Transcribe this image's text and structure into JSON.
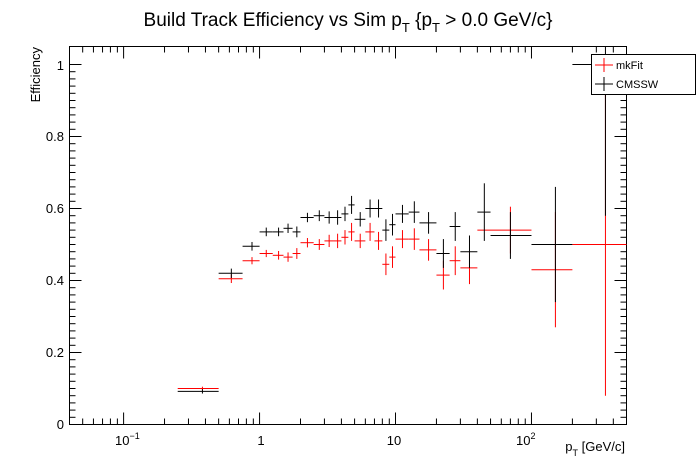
{
  "chart_data": {
    "type": "scatter",
    "title": "Build Track Efficiency vs Sim p",
    "title_sub": "T",
    "title_rest1": " {p",
    "title_sub2": "T",
    "title_rest2": " > 0.0 GeV/c}",
    "xlabel": "p",
    "xlabel_sub": "T",
    "xlabel_rest": " [GeV/c]",
    "ylabel": "Efficiency",
    "xscale": "log",
    "xlim": [
      0.04,
      500
    ],
    "ylim": [
      0,
      1.05
    ],
    "x_tick_labels": [
      "10",
      "−1",
      "1",
      "10",
      "10",
      "2"
    ],
    "y_tick_labels": [
      "0",
      "0.2",
      "0.4",
      "0.6",
      "0.8",
      "1"
    ],
    "legend_position": "top-right",
    "series": [
      {
        "name": "mkFit",
        "color": "#ff0000",
        "points": [
          {
            "x": 0.38,
            "xlo": 0.25,
            "xhi": 0.5,
            "y": 0.1,
            "yerr": 0.005
          },
          {
            "x": 0.62,
            "xlo": 0.5,
            "xhi": 0.75,
            "y": 0.405,
            "yerr": 0.012
          },
          {
            "x": 0.88,
            "xlo": 0.75,
            "xhi": 1.0,
            "y": 0.455,
            "yerr": 0.01
          },
          {
            "x": 1.12,
            "xlo": 1.0,
            "xhi": 1.25,
            "y": 0.475,
            "yerr": 0.01
          },
          {
            "x": 1.38,
            "xlo": 1.25,
            "xhi": 1.5,
            "y": 0.47,
            "yerr": 0.012
          },
          {
            "x": 1.62,
            "xlo": 1.5,
            "xhi": 1.75,
            "y": 0.465,
            "yerr": 0.013
          },
          {
            "x": 1.88,
            "xlo": 1.75,
            "xhi": 2.0,
            "y": 0.475,
            "yerr": 0.015
          },
          {
            "x": 2.25,
            "xlo": 2.0,
            "xhi": 2.5,
            "y": 0.505,
            "yerr": 0.013
          },
          {
            "x": 2.75,
            "xlo": 2.5,
            "xhi": 3.0,
            "y": 0.5,
            "yerr": 0.015
          },
          {
            "x": 3.25,
            "xlo": 3.0,
            "xhi": 3.5,
            "y": 0.51,
            "yerr": 0.017
          },
          {
            "x": 3.75,
            "xlo": 3.5,
            "xhi": 4.0,
            "y": 0.51,
            "yerr": 0.02
          },
          {
            "x": 4.25,
            "xlo": 4.0,
            "xhi": 4.5,
            "y": 0.52,
            "yerr": 0.02
          },
          {
            "x": 4.75,
            "xlo": 4.5,
            "xhi": 5.0,
            "y": 0.535,
            "yerr": 0.025
          },
          {
            "x": 5.5,
            "xlo": 5.0,
            "xhi": 6.0,
            "y": 0.51,
            "yerr": 0.02
          },
          {
            "x": 6.5,
            "xlo": 6.0,
            "xhi": 7.0,
            "y": 0.535,
            "yerr": 0.025
          },
          {
            "x": 7.5,
            "xlo": 7.0,
            "xhi": 8.0,
            "y": 0.51,
            "yerr": 0.025
          },
          {
            "x": 8.5,
            "xlo": 8.0,
            "xhi": 9.0,
            "y": 0.445,
            "yerr": 0.03
          },
          {
            "x": 9.5,
            "xlo": 9.0,
            "xhi": 10.0,
            "y": 0.465,
            "yerr": 0.03
          },
          {
            "x": 11.25,
            "xlo": 10.0,
            "xhi": 12.5,
            "y": 0.515,
            "yerr": 0.025
          },
          {
            "x": 13.75,
            "xlo": 12.5,
            "xhi": 15.0,
            "y": 0.515,
            "yerr": 0.03
          },
          {
            "x": 17.5,
            "xlo": 15.0,
            "xhi": 20.0,
            "y": 0.485,
            "yerr": 0.03
          },
          {
            "x": 22.5,
            "xlo": 20.0,
            "xhi": 25.0,
            "y": 0.415,
            "yerr": 0.04
          },
          {
            "x": 27.5,
            "xlo": 25.0,
            "xhi": 30.0,
            "y": 0.455,
            "yerr": 0.04
          },
          {
            "x": 35.0,
            "xlo": 30.0,
            "xhi": 40.0,
            "y": 0.435,
            "yerr": 0.045
          },
          {
            "x": 70.0,
            "xlo": 40.0,
            "xhi": 100.0,
            "y": 0.54,
            "yerr": 0.065
          },
          {
            "x": 150.0,
            "xlo": 100.0,
            "xhi": 200.0,
            "y": 0.43,
            "yerr": 0.16
          },
          {
            "x": 350.0,
            "xlo": 200.0,
            "xhi": 500.0,
            "y": 0.5,
            "yerr": 0.42
          }
        ]
      },
      {
        "name": "CMSSW",
        "color": "#000000",
        "points": [
          {
            "x": 0.38,
            "xlo": 0.25,
            "xhi": 0.5,
            "y": 0.092,
            "yerr": 0.006
          },
          {
            "x": 0.62,
            "xlo": 0.5,
            "xhi": 0.75,
            "y": 0.42,
            "yerr": 0.013
          },
          {
            "x": 0.88,
            "xlo": 0.75,
            "xhi": 1.0,
            "y": 0.495,
            "yerr": 0.012
          },
          {
            "x": 1.12,
            "xlo": 1.0,
            "xhi": 1.25,
            "y": 0.535,
            "yerr": 0.012
          },
          {
            "x": 1.38,
            "xlo": 1.25,
            "xhi": 1.5,
            "y": 0.535,
            "yerr": 0.012
          },
          {
            "x": 1.62,
            "xlo": 1.5,
            "xhi": 1.75,
            "y": 0.545,
            "yerr": 0.013
          },
          {
            "x": 1.88,
            "xlo": 1.75,
            "xhi": 2.0,
            "y": 0.535,
            "yerr": 0.015
          },
          {
            "x": 2.25,
            "xlo": 2.0,
            "xhi": 2.5,
            "y": 0.575,
            "yerr": 0.013
          },
          {
            "x": 2.75,
            "xlo": 2.5,
            "xhi": 3.0,
            "y": 0.58,
            "yerr": 0.015
          },
          {
            "x": 3.25,
            "xlo": 3.0,
            "xhi": 3.5,
            "y": 0.575,
            "yerr": 0.017
          },
          {
            "x": 3.75,
            "xlo": 3.5,
            "xhi": 4.0,
            "y": 0.575,
            "yerr": 0.02
          },
          {
            "x": 4.25,
            "xlo": 4.0,
            "xhi": 4.5,
            "y": 0.585,
            "yerr": 0.02
          },
          {
            "x": 4.75,
            "xlo": 4.5,
            "xhi": 5.0,
            "y": 0.61,
            "yerr": 0.025
          },
          {
            "x": 5.5,
            "xlo": 5.0,
            "xhi": 6.0,
            "y": 0.57,
            "yerr": 0.02
          },
          {
            "x": 6.5,
            "xlo": 6.0,
            "xhi": 7.0,
            "y": 0.6,
            "yerr": 0.025
          },
          {
            "x": 7.5,
            "xlo": 7.0,
            "xhi": 8.0,
            "y": 0.6,
            "yerr": 0.025
          },
          {
            "x": 8.5,
            "xlo": 8.0,
            "xhi": 9.0,
            "y": 0.54,
            "yerr": 0.03
          },
          {
            "x": 9.5,
            "xlo": 9.0,
            "xhi": 10.0,
            "y": 0.555,
            "yerr": 0.03
          },
          {
            "x": 11.25,
            "xlo": 10.0,
            "xhi": 12.5,
            "y": 0.585,
            "yerr": 0.025
          },
          {
            "x": 13.75,
            "xlo": 12.5,
            "xhi": 15.0,
            "y": 0.59,
            "yerr": 0.03
          },
          {
            "x": 17.5,
            "xlo": 15.0,
            "xhi": 20.0,
            "y": 0.56,
            "yerr": 0.03
          },
          {
            "x": 22.5,
            "xlo": 20.0,
            "xhi": 25.0,
            "y": 0.475,
            "yerr": 0.04
          },
          {
            "x": 27.5,
            "xlo": 25.0,
            "xhi": 30.0,
            "y": 0.55,
            "yerr": 0.04
          },
          {
            "x": 35.0,
            "xlo": 30.0,
            "xhi": 40.0,
            "y": 0.48,
            "yerr": 0.045
          },
          {
            "x": 45.0,
            "xlo": 40.0,
            "xhi": 50.0,
            "y": 0.59,
            "yerr": 0.08
          },
          {
            "x": 70.0,
            "xlo": 50.0,
            "xhi": 100.0,
            "y": 0.525,
            "yerr": 0.065
          },
          {
            "x": 150.0,
            "xlo": 100.0,
            "xhi": 200.0,
            "y": 0.5,
            "yerr": 0.16
          },
          {
            "x": 350.0,
            "xlo": 200.0,
            "xhi": 500.0,
            "y": 1.0,
            "yerr": 0.42
          }
        ]
      }
    ]
  }
}
